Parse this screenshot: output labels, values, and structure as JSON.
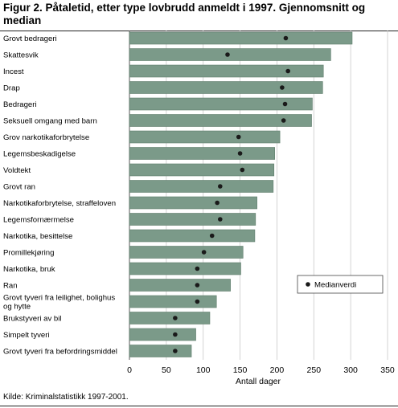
{
  "chart_data": {
    "type": "bar",
    "orientation": "horizontal",
    "title": "Figur 2. Påtaletid, etter type lovbrudd anmeldt i 1997. Gjennomsnitt og median",
    "xlabel": "Antall dager",
    "ylabel": "",
    "xlim": [
      0,
      350
    ],
    "xticks": [
      0,
      50,
      100,
      150,
      200,
      250,
      300,
      350
    ],
    "grid": true,
    "legend_position": "lower-right",
    "colors": {
      "bar": "#7b9a89",
      "bar_edge": "#5f7d6c",
      "marker": "#1a1a1a",
      "grid": "#c9c9c9"
    },
    "categories": [
      "Grovt bedrageri",
      "Skattesvik",
      "Incest",
      "Drap",
      "Bedrageri",
      "Seksuell omgang med barn",
      "Grov narkotikaforbrytelse",
      "Legemsbeskadigelse",
      "Voldtekt",
      "Grovt ran",
      "Narkotikaforbrytelse, straffeloven",
      "Legemsfornærmelse",
      "Narkotika, besittelse",
      "Promillekjøring",
      "Narkotika, bruk",
      "Ran",
      "Grovt tyveri fra leilighet, bolighus og hytte",
      "Brukstyveri av bil",
      "Simpelt tyveri",
      "Grovt tyveri fra befordringsmiddel"
    ],
    "series": [
      {
        "values": [
          302,
          273,
          263,
          262,
          248,
          247,
          204,
          197,
          196,
          195,
          173,
          171,
          170,
          154,
          151,
          137,
          118,
          109,
          90,
          84
        ]
      },
      {
        "name": "Medianverdi",
        "values": [
          212,
          133,
          215,
          207,
          211,
          209,
          148,
          150,
          153,
          123,
          119,
          123,
          112,
          101,
          92,
          92,
          92,
          62,
          62,
          62
        ]
      }
    ]
  },
  "source": "Kilde: Kriminalstatistikk 1997-2001."
}
